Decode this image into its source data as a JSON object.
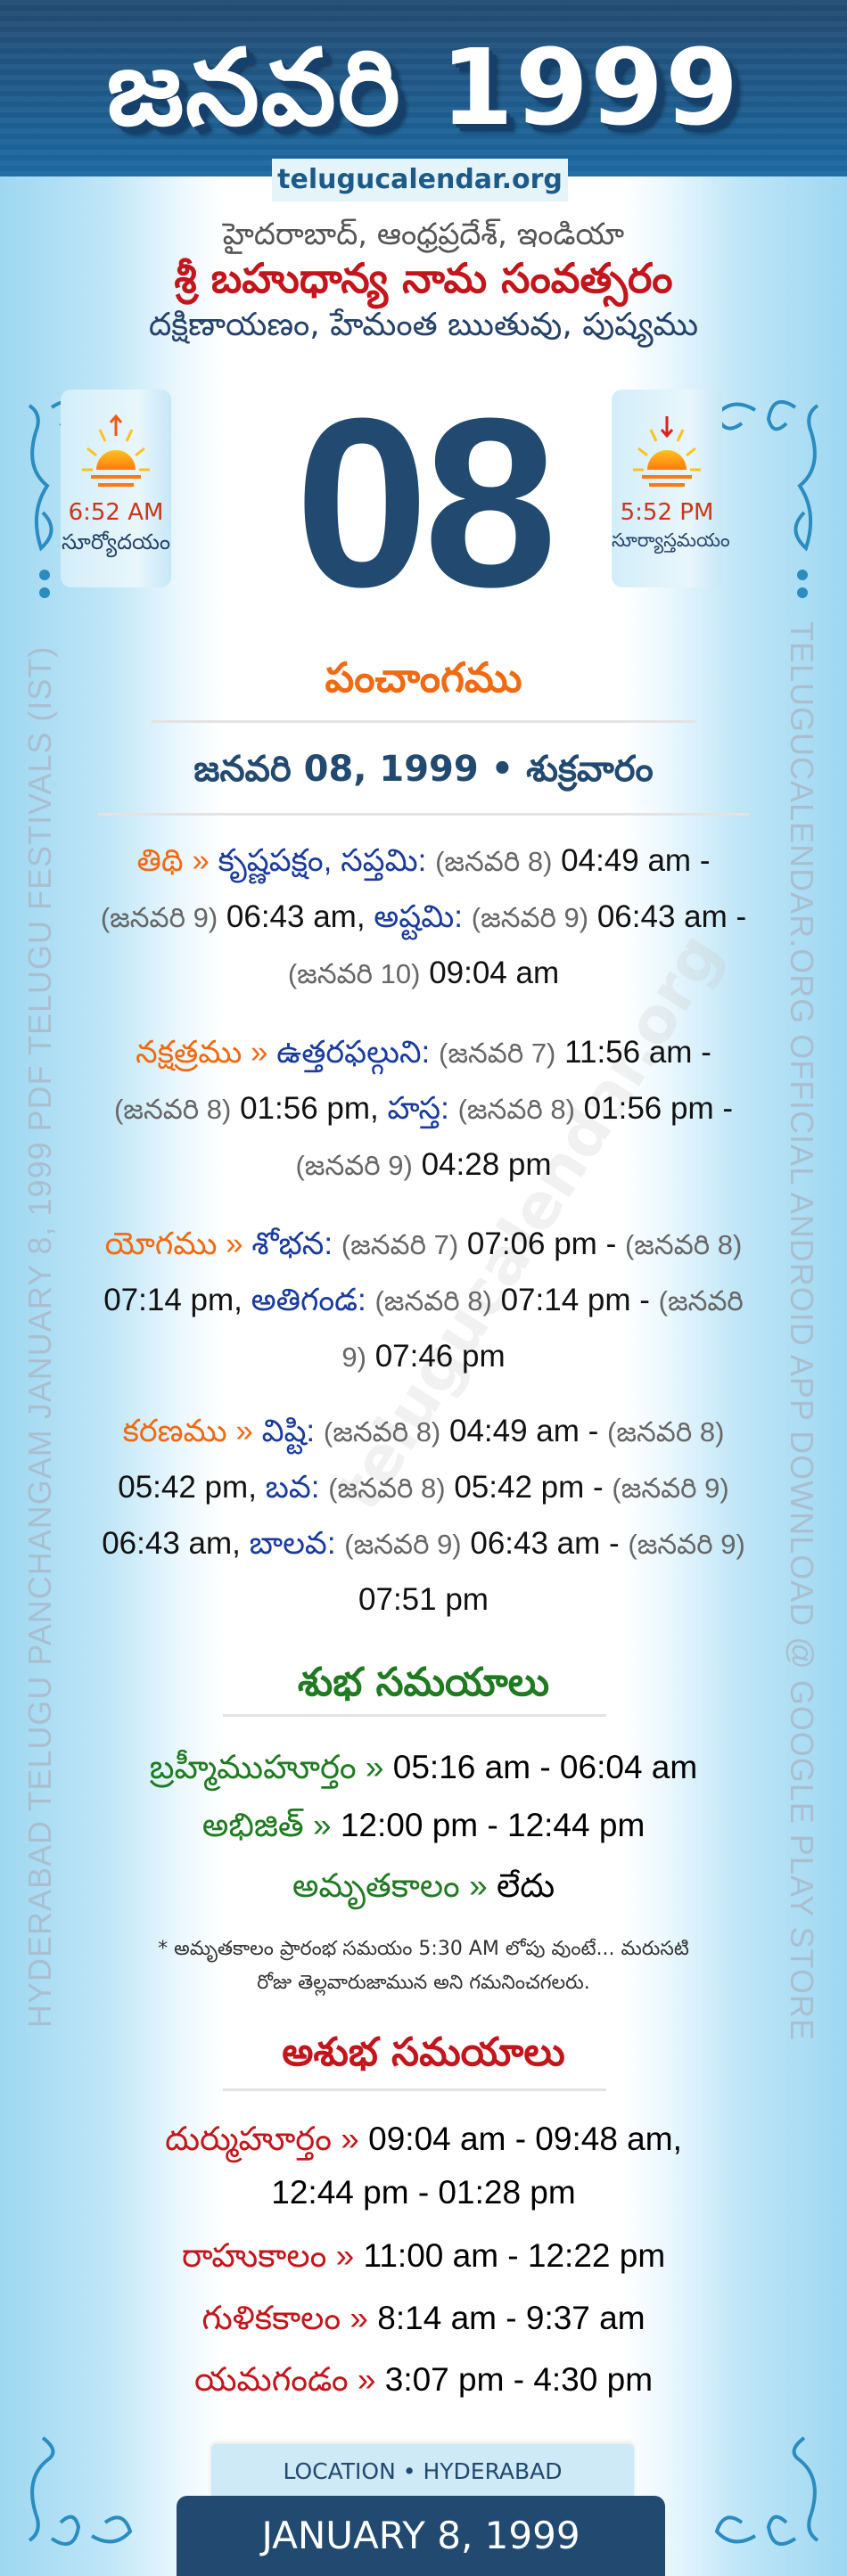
{
  "header": {
    "title": "జనవరి 1999",
    "site": "telugucalendar.org"
  },
  "location_line": "హైదరాబాద్, ఆంధ్రప్రదేశ్, ఇండియా",
  "samvatsaram": "శ్రీ బహుధాన్య నామ సంవత్సరం",
  "ritu_line": "దక్షిణాయణం, హేమంత ఋతువు, పుష్యము",
  "sunrise": {
    "time": "6:52 AM",
    "label": "సూర్యోదయం",
    "icon": "sunrise-icon"
  },
  "sunset": {
    "time": "5:52 PM",
    "label": "సూర్యాస్తమయం",
    "icon": "sunset-icon"
  },
  "day": "08",
  "panchangam": {
    "heading": "పంచాంగము",
    "date_heading": "జనవరి 08, 1999 • శుక్రవారం",
    "entries": [
      {
        "label": "తిథి »",
        "prefix": "కృష్ణపక్షం, ",
        "items": [
          {
            "name": "సప్తమి:",
            "start_date": "(జనవరి 8)",
            "start_time": "04:49 am",
            "end_date": "(జనవరి 9)",
            "end_time": "06:43 am"
          },
          {
            "name": "అష్టమి:",
            "start_date": "(జనవరి 9)",
            "start_time": "06:43 am",
            "end_date": "(జనవరి 10)",
            "end_time": "09:04 am"
          }
        ]
      },
      {
        "label": "నక్షత్రము »",
        "prefix": "",
        "items": [
          {
            "name": "ఉత్తరఫల్గుని:",
            "start_date": "(జనవరి 7)",
            "start_time": "11:56 am",
            "end_date": "(జనవరి 8)",
            "end_time": "01:56 pm"
          },
          {
            "name": "హస్త:",
            "start_date": "(జనవరి 8)",
            "start_time": "01:56 pm",
            "end_date": "(జనవరి 9)",
            "end_time": "04:28 pm"
          }
        ]
      },
      {
        "label": "యోగము »",
        "prefix": "",
        "items": [
          {
            "name": "శోభన:",
            "start_date": "(జనవరి 7)",
            "start_time": "07:06 pm",
            "end_date": "(జనవరి 8)",
            "end_time": "07:14 pm"
          },
          {
            "name": "అతిగండ:",
            "start_date": "(జనవరి 8)",
            "start_time": "07:14 pm",
            "end_date": "(జనవరి 9)",
            "end_time": "07:46 pm"
          }
        ]
      },
      {
        "label": "కరణము »",
        "prefix": "",
        "items": [
          {
            "name": "విష్టి:",
            "start_date": "(జనవరి 8)",
            "start_time": "04:49 am",
            "end_date": "(జనవరి 8)",
            "end_time": "05:42 pm"
          },
          {
            "name": "బవ:",
            "start_date": "(జనవరి 8)",
            "start_time": "05:42 pm",
            "end_date": "(జనవరి 9)",
            "end_time": "06:43 am"
          },
          {
            "name": "బాలవ:",
            "start_date": "(జనవరి 9)",
            "start_time": "06:43 am",
            "end_date": "(జనవరి 9)",
            "end_time": "07:51 pm"
          }
        ]
      }
    ]
  },
  "auspicious": {
    "heading": "శుభ సమయాలు",
    "rows": [
      {
        "label": "బ్రహ్మీముహూర్తం »",
        "value": "05:16 am - 06:04 am"
      },
      {
        "label": "అభిజిత్ »",
        "value": "12:00 pm - 12:44 pm"
      },
      {
        "label": "అమృతకాలం »",
        "value": "లేదు"
      }
    ],
    "note_1": "* అమృతకాలం ప్రారంభ సమయం 5:30 AM లోపు వుంటే... మరుసటి",
    "note_2": "రోజు తెల్లవారుజామున అని గమనించగలరు."
  },
  "inauspicious": {
    "heading": "అశుభ సమయాలు",
    "rows": [
      {
        "label": "దుర్ముహూర్తం »",
        "value": "09:04 am - 09:48 am,",
        "value2": "12:44 pm - 01:28 pm"
      },
      {
        "label": "రాహుకాలం »",
        "value": "11:00 am - 12:22 pm"
      },
      {
        "label": "గుళికకాలం »",
        "value": "8:14 am - 9:37 am"
      },
      {
        "label": "యమగండం »",
        "value": "3:07 pm - 4:30 pm"
      }
    ]
  },
  "side_left": "HYDERABAD TELUGU PANCHANGAM JANUARY 8, 1999 PDF TELUGU FESTIVALS (IST)",
  "side_right": "TELUGUCALENDAR.ORG OFFICIAL ANDROID APP DOWNLOAD @ GOOGLE PLAY STORE",
  "watermark": "telugucalendar.org",
  "footer": {
    "location": "LOCATION • HYDERABAD",
    "date": "JANUARY 8, 1999"
  },
  "colors": {
    "navy": "#224a70",
    "orange": "#f06a12",
    "blue": "#1a3b9c",
    "green": "#1f7a21",
    "red": "#c3161c"
  }
}
